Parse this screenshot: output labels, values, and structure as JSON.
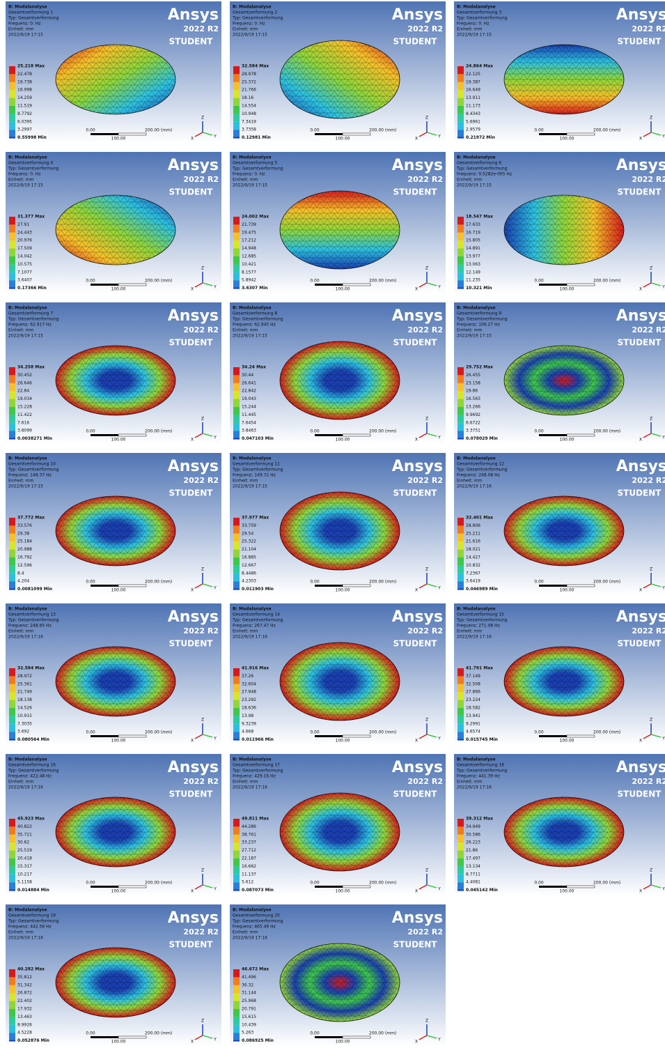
{
  "common": {
    "analysis": "B: Modalanalyse",
    "type": "Typ: Gesamtverformung",
    "unit": "Einheit: mm",
    "logo": "Ansys",
    "version": "2022 R2",
    "edition": "STUDENT",
    "scale_start": "0.00",
    "scale_end": "200.00 (mm)",
    "scale_mid": "100.00",
    "axis_z": "Z",
    "axis_x": "X",
    "axis_y": "Y"
  },
  "panels": [
    {
      "title": "Gesamtverformung 1",
      "frequency": "Frequenz: 0. Hz",
      "date": "2022/9/19 17:15",
      "legend": [
        "25.218 Max",
        "22.478",
        "19.738",
        "16.998",
        "14.259",
        "11.519",
        "8.7792",
        "6.0395",
        "3.2997",
        "0.55998 Min"
      ]
    },
    {
      "title": "Gesamtverformung 2",
      "frequency": "Frequenz: 0. Hz",
      "date": "2022/9/19 17:15",
      "legend": [
        "32.584 Max",
        "28.978",
        "25.372",
        "21.766",
        "18.16",
        "14.554",
        "10.948",
        "7.3419",
        "3.7358",
        "0.12981 Min"
      ]
    },
    {
      "title": "Gesamtverformung 3",
      "frequency": "Frequenz: 0. Hz",
      "date": "2022/9/19 17:15",
      "legend": [
        "24.864 Max",
        "22.125",
        "19.387",
        "16.649",
        "13.911",
        "11.173",
        "8.4343",
        "5.6961",
        "2.9579",
        "0.21972 Min"
      ]
    },
    {
      "title": "Gesamtverformung 4",
      "frequency": "Frequenz: 0. Hz",
      "date": "2022/9/19 17:15",
      "legend": [
        "31.377 Max",
        "27.91",
        "24.443",
        "20.976",
        "17.509",
        "14.042",
        "10.575",
        "7.1077",
        "3.6407",
        "0.17366 Min"
      ]
    },
    {
      "title": "Gesamtverformung 5",
      "frequency": "Frequenz: 0. Hz",
      "date": "2022/9/19 17:15",
      "legend": [
        "24.002 Max",
        "21.739",
        "19.475",
        "17.212",
        "14.948",
        "12.685",
        "10.421",
        "8.1577",
        "5.8942",
        "3.6307 Min"
      ]
    },
    {
      "title": "Gesamtverformung 6",
      "frequency": "Frequenz: 9.5282e-005 Hz",
      "date": "2022/9/19 17:15",
      "legend": [
        "18.547 Max",
        "17.633",
        "16.719",
        "15.805",
        "14.891",
        "13.977",
        "13.063",
        "12.149",
        "11.235",
        "10.321 Min"
      ]
    },
    {
      "title": "Gesamtverformung 7",
      "frequency": "Frequenz: 62.917 Hz",
      "date": "2022/9/19 17:15",
      "legend": [
        "34.258 Max",
        "30.452",
        "26.646",
        "22.84",
        "19.034",
        "15.228",
        "11.422",
        "7.616",
        "3.8099",
        "0.0038271 Min"
      ]
    },
    {
      "title": "Gesamtverformung 8",
      "frequency": "Frequenz: 62.945 Hz",
      "date": "2022/9/19 17:15",
      "legend": [
        "34.24 Max",
        "30.44",
        "26.641",
        "22.842",
        "19.043",
        "15.244",
        "11.445",
        "7.6454",
        "3.8463",
        "0.047103 Min"
      ]
    },
    {
      "title": "Gesamtverformung 9",
      "frequency": "Frequenz: 106.27 Hz",
      "date": "2022/9/19 17:15",
      "legend": [
        "29.752 Max",
        "26.455",
        "23.158",
        "19.86",
        "16.563",
        "13.266",
        "9.9692",
        "6.6722",
        "3.3751",
        "0.078029 Min"
      ]
    },
    {
      "title": "Gesamtverformung 10",
      "frequency": "Frequenz: 148.37 Hz",
      "date": "2022/9/19 17:15",
      "legend": [
        "37.772 Max",
        "33.576",
        "29.38",
        "25.184",
        "20.988",
        "16.792",
        "12.596",
        "8.4",
        "4.204",
        "0.0081099 Min"
      ]
    },
    {
      "title": "Gesamtverformung 11",
      "frequency": "Frequenz: 149.72 Hz",
      "date": "2022/9/19 17:15",
      "legend": [
        "37.977 Max",
        "33.759",
        "29.54",
        "25.322",
        "21.104",
        "16.885",
        "12.667",
        "8.4486",
        "4.2303",
        "0.011903 Min"
      ]
    },
    {
      "title": "Gesamtverformung 12",
      "frequency": "Frequenz: 248.08 Hz",
      "date": "2022/9/19 17:16",
      "legend": [
        "32.401 Max",
        "28.806",
        "25.211",
        "21.616",
        "18.021",
        "14.427",
        "10.832",
        "7.2367",
        "3.6419",
        "0.046989 Min"
      ]
    },
    {
      "title": "Gesamtverformung 13",
      "frequency": "Frequenz: 248.65 Hz",
      "date": "2022/9/19 17:16",
      "legend": [
        "32.584 Max",
        "28.972",
        "25.361",
        "21.749",
        "18.138",
        "14.526",
        "10.915",
        "7.3035",
        "3.692",
        "0.080564 Min"
      ]
    },
    {
      "title": "Gesamtverformung 14",
      "frequency": "Frequenz: 267.47 Hz",
      "date": "2022/9/19 17:16",
      "legend": [
        "41.916 Max",
        "37.26",
        "32.604",
        "27.948",
        "23.292",
        "18.636",
        "13.98",
        "9.3239",
        "4.668",
        "0.011966 Min"
      ]
    },
    {
      "title": "Gesamtverformung 15",
      "frequency": "Frequenz: 271.08 Hz",
      "date": "2022/9/19 17:16",
      "legend": [
        "41.791 Max",
        "37.149",
        "32.508",
        "27.866",
        "23.224",
        "18.582",
        "13.941",
        "9.2991",
        "4.6574",
        "0.015745 Min"
      ]
    },
    {
      "title": "Gesamtverformung 16",
      "frequency": "Frequenz: 422.48 Hz",
      "date": "2022/9/19 17:16",
      "legend": [
        "45.923 Max",
        "40.822",
        "35.721",
        "30.62",
        "25.519",
        "20.418",
        "15.317",
        "10.217",
        "5.1158",
        "0.014884 Min"
      ]
    },
    {
      "title": "Gesamtverformung 17",
      "frequency": "Frequenz: 429.16 Hz",
      "date": "2022/9/19 17:16",
      "legend": [
        "49.811 Max",
        "44.286",
        "38.761",
        "33.237",
        "27.712",
        "22.187",
        "16.662",
        "11.137",
        "5.612",
        "0.087073 Min"
      ]
    },
    {
      "title": "Gesamtverformung 18",
      "frequency": "Frequenz: 441.39 Hz",
      "date": "2022/9/19 17:16",
      "legend": [
        "39.312 Max",
        "34.949",
        "30.586",
        "26.223",
        "21.86",
        "17.497",
        "13.134",
        "8.7711",
        "4.4081",
        "0.045142 Min"
      ]
    },
    {
      "title": "Gesamtverformung 19",
      "frequency": "Frequenz: 442.56 Hz",
      "date": "2022/9/19 17:16",
      "legend": [
        "40.282 Max",
        "35.812",
        "31.342",
        "26.872",
        "22.402",
        "17.932",
        "13.463",
        "8.9926",
        "4.5228",
        "0.052876 Min"
      ]
    },
    {
      "title": "Gesamtverformung 20",
      "frequency": "Frequenz: 465.49 Hz",
      "date": "2022/9/19 17:16",
      "legend": [
        "46.672 Max",
        "41.496",
        "36.32",
        "31.144",
        "25.968",
        "20.791",
        "15.615",
        "10.439",
        "5.263",
        "0.086925 Min"
      ]
    }
  ]
}
